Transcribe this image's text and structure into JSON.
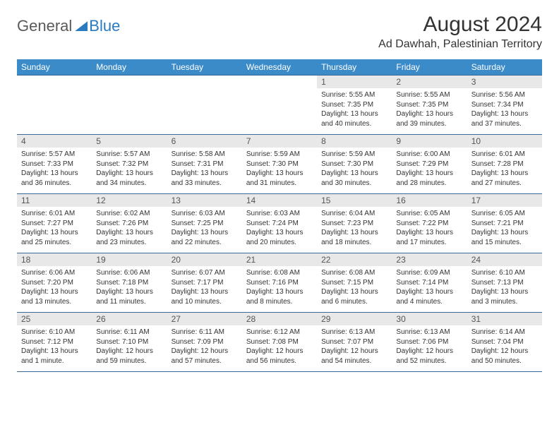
{
  "logo": {
    "part1": "General",
    "part2": "Blue"
  },
  "title": "August 2024",
  "location": "Ad Dawhah, Palestinian Territory",
  "day_headers": [
    "Sunday",
    "Monday",
    "Tuesday",
    "Wednesday",
    "Thursday",
    "Friday",
    "Saturday"
  ],
  "colors": {
    "header_bg": "#3b8bc9",
    "header_text": "#ffffff",
    "daynum_bg": "#e8e8e8",
    "border": "#3b6a9a",
    "logo_gray": "#5a5a5a",
    "logo_blue": "#2a7ac0",
    "text": "#333333"
  },
  "fonts": {
    "title_size": 30,
    "location_size": 16,
    "dayhead_size": 12,
    "daynum_size": 12,
    "detail_size": 10
  },
  "weeks": [
    {
      "nums": [
        "",
        "",
        "",
        "",
        "1",
        "2",
        "3"
      ],
      "details": [
        null,
        null,
        null,
        null,
        {
          "sunrise": "5:55 AM",
          "sunset": "7:35 PM",
          "daylight": "13 hours and 40 minutes."
        },
        {
          "sunrise": "5:55 AM",
          "sunset": "7:35 PM",
          "daylight": "13 hours and 39 minutes."
        },
        {
          "sunrise": "5:56 AM",
          "sunset": "7:34 PM",
          "daylight": "13 hours and 37 minutes."
        }
      ]
    },
    {
      "nums": [
        "4",
        "5",
        "6",
        "7",
        "8",
        "9",
        "10"
      ],
      "details": [
        {
          "sunrise": "5:57 AM",
          "sunset": "7:33 PM",
          "daylight": "13 hours and 36 minutes."
        },
        {
          "sunrise": "5:57 AM",
          "sunset": "7:32 PM",
          "daylight": "13 hours and 34 minutes."
        },
        {
          "sunrise": "5:58 AM",
          "sunset": "7:31 PM",
          "daylight": "13 hours and 33 minutes."
        },
        {
          "sunrise": "5:59 AM",
          "sunset": "7:30 PM",
          "daylight": "13 hours and 31 minutes."
        },
        {
          "sunrise": "5:59 AM",
          "sunset": "7:30 PM",
          "daylight": "13 hours and 30 minutes."
        },
        {
          "sunrise": "6:00 AM",
          "sunset": "7:29 PM",
          "daylight": "13 hours and 28 minutes."
        },
        {
          "sunrise": "6:01 AM",
          "sunset": "7:28 PM",
          "daylight": "13 hours and 27 minutes."
        }
      ]
    },
    {
      "nums": [
        "11",
        "12",
        "13",
        "14",
        "15",
        "16",
        "17"
      ],
      "details": [
        {
          "sunrise": "6:01 AM",
          "sunset": "7:27 PM",
          "daylight": "13 hours and 25 minutes."
        },
        {
          "sunrise": "6:02 AM",
          "sunset": "7:26 PM",
          "daylight": "13 hours and 23 minutes."
        },
        {
          "sunrise": "6:03 AM",
          "sunset": "7:25 PM",
          "daylight": "13 hours and 22 minutes."
        },
        {
          "sunrise": "6:03 AM",
          "sunset": "7:24 PM",
          "daylight": "13 hours and 20 minutes."
        },
        {
          "sunrise": "6:04 AM",
          "sunset": "7:23 PM",
          "daylight": "13 hours and 18 minutes."
        },
        {
          "sunrise": "6:05 AM",
          "sunset": "7:22 PM",
          "daylight": "13 hours and 17 minutes."
        },
        {
          "sunrise": "6:05 AM",
          "sunset": "7:21 PM",
          "daylight": "13 hours and 15 minutes."
        }
      ]
    },
    {
      "nums": [
        "18",
        "19",
        "20",
        "21",
        "22",
        "23",
        "24"
      ],
      "details": [
        {
          "sunrise": "6:06 AM",
          "sunset": "7:20 PM",
          "daylight": "13 hours and 13 minutes."
        },
        {
          "sunrise": "6:06 AM",
          "sunset": "7:18 PM",
          "daylight": "13 hours and 11 minutes."
        },
        {
          "sunrise": "6:07 AM",
          "sunset": "7:17 PM",
          "daylight": "13 hours and 10 minutes."
        },
        {
          "sunrise": "6:08 AM",
          "sunset": "7:16 PM",
          "daylight": "13 hours and 8 minutes."
        },
        {
          "sunrise": "6:08 AM",
          "sunset": "7:15 PM",
          "daylight": "13 hours and 6 minutes."
        },
        {
          "sunrise": "6:09 AM",
          "sunset": "7:14 PM",
          "daylight": "13 hours and 4 minutes."
        },
        {
          "sunrise": "6:10 AM",
          "sunset": "7:13 PM",
          "daylight": "13 hours and 3 minutes."
        }
      ]
    },
    {
      "nums": [
        "25",
        "26",
        "27",
        "28",
        "29",
        "30",
        "31"
      ],
      "details": [
        {
          "sunrise": "6:10 AM",
          "sunset": "7:12 PM",
          "daylight": "13 hours and 1 minute."
        },
        {
          "sunrise": "6:11 AM",
          "sunset": "7:10 PM",
          "daylight": "12 hours and 59 minutes."
        },
        {
          "sunrise": "6:11 AM",
          "sunset": "7:09 PM",
          "daylight": "12 hours and 57 minutes."
        },
        {
          "sunrise": "6:12 AM",
          "sunset": "7:08 PM",
          "daylight": "12 hours and 56 minutes."
        },
        {
          "sunrise": "6:13 AM",
          "sunset": "7:07 PM",
          "daylight": "12 hours and 54 minutes."
        },
        {
          "sunrise": "6:13 AM",
          "sunset": "7:06 PM",
          "daylight": "12 hours and 52 minutes."
        },
        {
          "sunrise": "6:14 AM",
          "sunset": "7:04 PM",
          "daylight": "12 hours and 50 minutes."
        }
      ]
    }
  ],
  "labels": {
    "sunrise": "Sunrise: ",
    "sunset": "Sunset: ",
    "daylight": "Daylight: "
  }
}
